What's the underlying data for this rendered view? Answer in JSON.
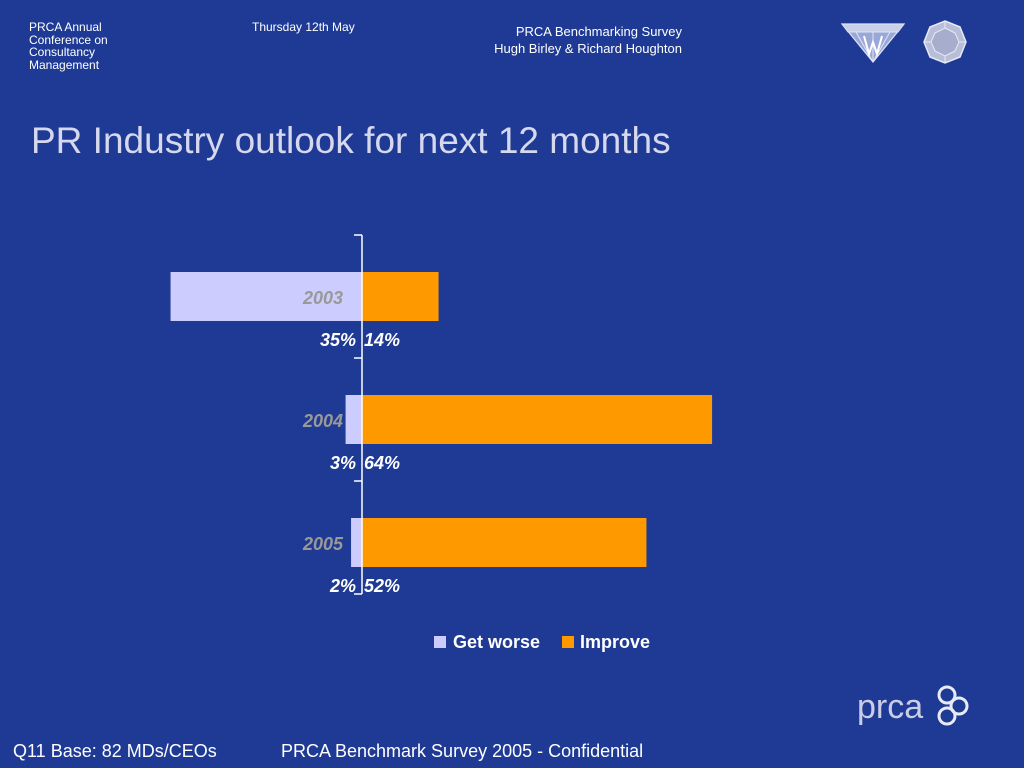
{
  "header": {
    "conference_lines": [
      "PRCA Annual",
      "Conference on",
      "Consultancy",
      "Management"
    ],
    "date": "Thursday 12th May",
    "survey_lines": [
      "PRCA Benchmarking Survey",
      "Hugh Birley & Richard Houghton"
    ]
  },
  "title": "PR Industry outlook for next 12 months",
  "chart_data": {
    "type": "bar",
    "orientation": "horizontal",
    "stacked_diverging": true,
    "categories": [
      "2003",
      "2004",
      "2005"
    ],
    "series": [
      {
        "name": "Get worse",
        "values": [
          35,
          3,
          2
        ],
        "labels": [
          "35%",
          "3%",
          "2%"
        ],
        "color": "#ccccff"
      },
      {
        "name": "Improve",
        "values": [
          14,
          64,
          52
        ],
        "labels": [
          "14%",
          "64%",
          "52%"
        ],
        "color": "#ff9900"
      }
    ],
    "xlim": [
      -35,
      64
    ],
    "legend_position": "bottom",
    "grid": false
  },
  "colors": {
    "background": "#1e3a94",
    "category_label": "#999999",
    "text": "#ffffff"
  },
  "logo": {
    "prca_text": "prca"
  },
  "footer": {
    "left": "Q11 Base: 82 MDs/CEOs",
    "right": "PRCA Benchmark Survey 2005 - Confidential"
  }
}
